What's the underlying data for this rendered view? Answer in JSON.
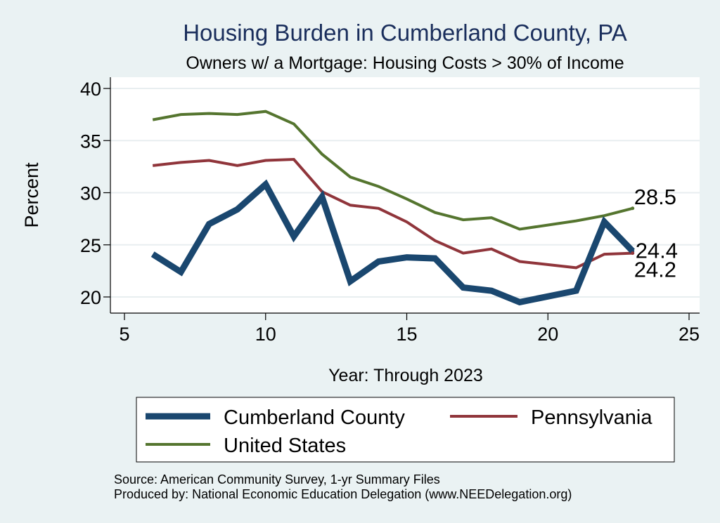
{
  "chart_data": {
    "type": "line",
    "title": "Housing Burden in Cumberland County, PA",
    "subtitle": "Owners w/ a Mortgage: Housing Costs > 30% of Income",
    "xlabel": "Year: Through 2023",
    "ylabel": "Percent",
    "xlim": [
      5,
      25
    ],
    "ylim": [
      19,
      41
    ],
    "xticks": [
      5,
      10,
      15,
      20,
      25
    ],
    "yticks": [
      20,
      25,
      30,
      35,
      40
    ],
    "grid": true,
    "legend_position": "bottom",
    "series": [
      {
        "name": "Cumberland County",
        "color": "#1a476f",
        "x": [
          6,
          7,
          8,
          9,
          10,
          11,
          12,
          13,
          14,
          15,
          16,
          17,
          18,
          19,
          21,
          22,
          23
        ],
        "y": [
          24.1,
          22.4,
          27.0,
          28.4,
          30.8,
          25.8,
          29.6,
          21.5,
          23.4,
          23.8,
          23.7,
          20.9,
          20.6,
          19.5,
          20.6,
          27.2,
          24.4
        ],
        "end_label": "24.4"
      },
      {
        "name": "Pennsylvania",
        "color": "#90353b",
        "x": [
          6,
          7,
          8,
          9,
          10,
          11,
          12,
          13,
          14,
          15,
          16,
          17,
          18,
          19,
          21,
          22,
          23
        ],
        "y": [
          32.6,
          32.9,
          33.1,
          32.6,
          33.1,
          33.2,
          30.1,
          28.8,
          28.5,
          27.2,
          25.4,
          24.2,
          24.6,
          23.4,
          22.8,
          24.1,
          24.2
        ],
        "end_label": "24.2"
      },
      {
        "name": "United States",
        "color": "#55752f",
        "x": [
          6,
          7,
          8,
          9,
          10,
          11,
          12,
          13,
          14,
          15,
          16,
          17,
          18,
          19,
          21,
          22,
          23
        ],
        "y": [
          37.0,
          37.5,
          37.6,
          37.5,
          37.8,
          36.6,
          33.7,
          31.5,
          30.6,
          29.4,
          28.1,
          27.4,
          27.6,
          26.5,
          27.3,
          27.8,
          28.5
        ],
        "end_label": "28.5"
      }
    ],
    "notes": [
      "Source: American Community Survey, 1-yr Summary Files",
      "Produced by: National Economic Education Delegation (www.NEEDelegation.org)"
    ]
  }
}
